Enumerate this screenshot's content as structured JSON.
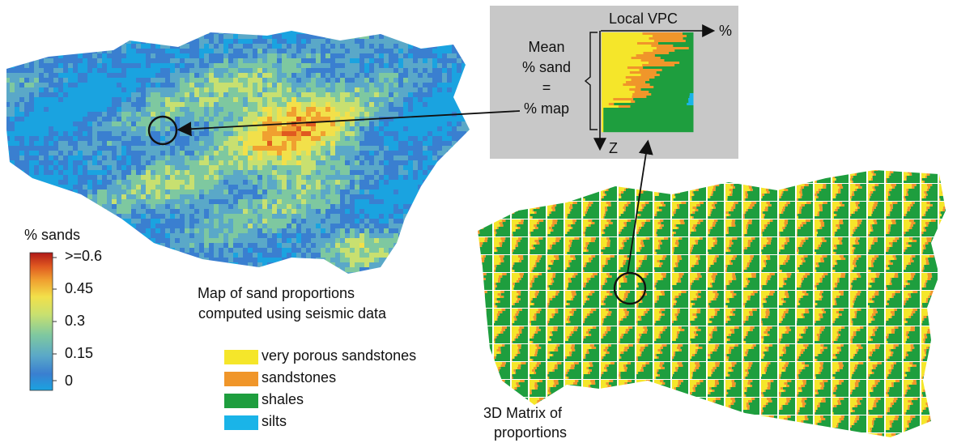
{
  "colorbar": {
    "title": "% sands",
    "ticks": [
      ">=0.6",
      "0.45",
      "0.3",
      "0.15",
      "0"
    ],
    "colors": [
      "#1aa3e0",
      "#3a7fd0",
      "#5aa8c8",
      "#7ec8a0",
      "#c8e070",
      "#f2e04a",
      "#f0a030",
      "#e05a20",
      "#b01818"
    ]
  },
  "seismic_map": {
    "caption_line1": "Map of sand proportions",
    "caption_line2": "computed using seismic data"
  },
  "vpc_inset": {
    "title": "Local VPC",
    "x_axis_label": "%",
    "z_axis_label": "Z",
    "equation": [
      "Mean",
      "% sand",
      "=",
      "% map"
    ],
    "background": "#c8c8c8"
  },
  "facies_legend": [
    {
      "label": "very porous sandstones",
      "color": "#f5e62a"
    },
    {
      "label": "sandstones",
      "color": "#f0962a"
    },
    {
      "label": "shales",
      "color": "#1e9e3e"
    },
    {
      "label": "silts",
      "color": "#1ab4e8"
    }
  ],
  "matrix": {
    "caption_line1": "3D Matrix of",
    "caption_line2": "proportions"
  }
}
